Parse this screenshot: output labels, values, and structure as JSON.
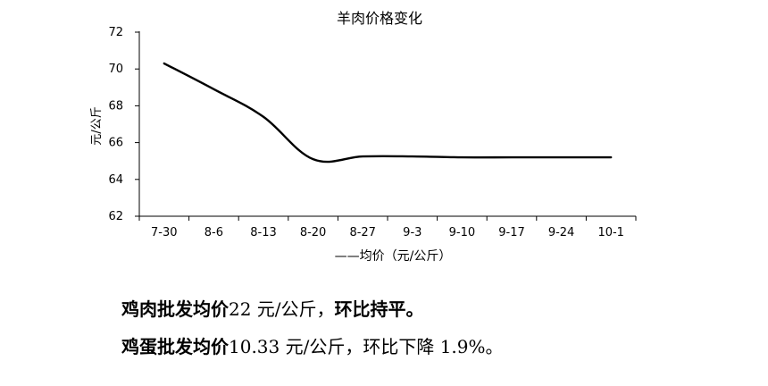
{
  "chart_data": {
    "type": "line",
    "title": "羊肉价格变化",
    "xlabel": "",
    "ylabel": "元/公斤",
    "categories": [
      "7-30",
      "8-6",
      "8-13",
      "8-20",
      "8-27",
      "9-3",
      "9-10",
      "9-17",
      "9-24",
      "10-1"
    ],
    "ylim": [
      62,
      72
    ],
    "yticks": [
      62,
      64,
      66,
      68,
      70,
      72
    ],
    "series": [
      {
        "name": "均价（元/公斤）",
        "legend_text": "——均价（元/公斤）",
        "values": [
          70.3,
          68.9,
          67.4,
          65.1,
          65.25,
          65.25,
          65.2,
          65.2,
          65.2,
          65.2
        ],
        "color": "#000000"
      }
    ],
    "legend_position": "bottom",
    "grid": false
  },
  "text": {
    "line1": {
      "bold": "鸡肉批发均价",
      "value": "22 元/公斤，",
      "bold2": "环比持平。"
    },
    "line2": {
      "bold": "鸡蛋批发均价",
      "value": "10.33 元/公斤，环比下降 1.9%。"
    }
  }
}
